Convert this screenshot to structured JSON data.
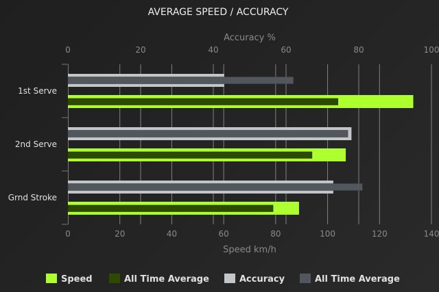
{
  "chart_data": {
    "type": "bar",
    "orientation": "horizontal",
    "title": "AVERAGE SPEED / ACCURACY",
    "categories": [
      "1st Serve",
      "2nd Serve",
      "Grnd Stroke"
    ],
    "x_bottom": {
      "label": "Speed km/h",
      "range": [
        0,
        140
      ],
      "ticks": [
        0,
        20,
        40,
        60,
        80,
        100,
        120,
        140
      ]
    },
    "x_top": {
      "label": "Accuracy %",
      "range": [
        0,
        100
      ],
      "ticks": [
        0,
        20,
        40,
        60,
        80,
        100
      ]
    },
    "grid": true,
    "legend_position": "bottom",
    "series": [
      {
        "name": "Speed",
        "axis": "bottom",
        "values": [
          133,
          107,
          89
        ],
        "color": "#adff2f"
      },
      {
        "name": "All Time Average",
        "axis": "bottom",
        "values": [
          104,
          94,
          79
        ],
        "color": "#2e4a00"
      },
      {
        "name": "Accuracy",
        "axis": "top",
        "values": [
          43,
          78,
          73
        ],
        "color": "#c2c6c9"
      },
      {
        "name": "All Time Average",
        "axis": "top",
        "values": [
          62,
          77,
          81
        ],
        "color": "#52575d"
      }
    ]
  }
}
